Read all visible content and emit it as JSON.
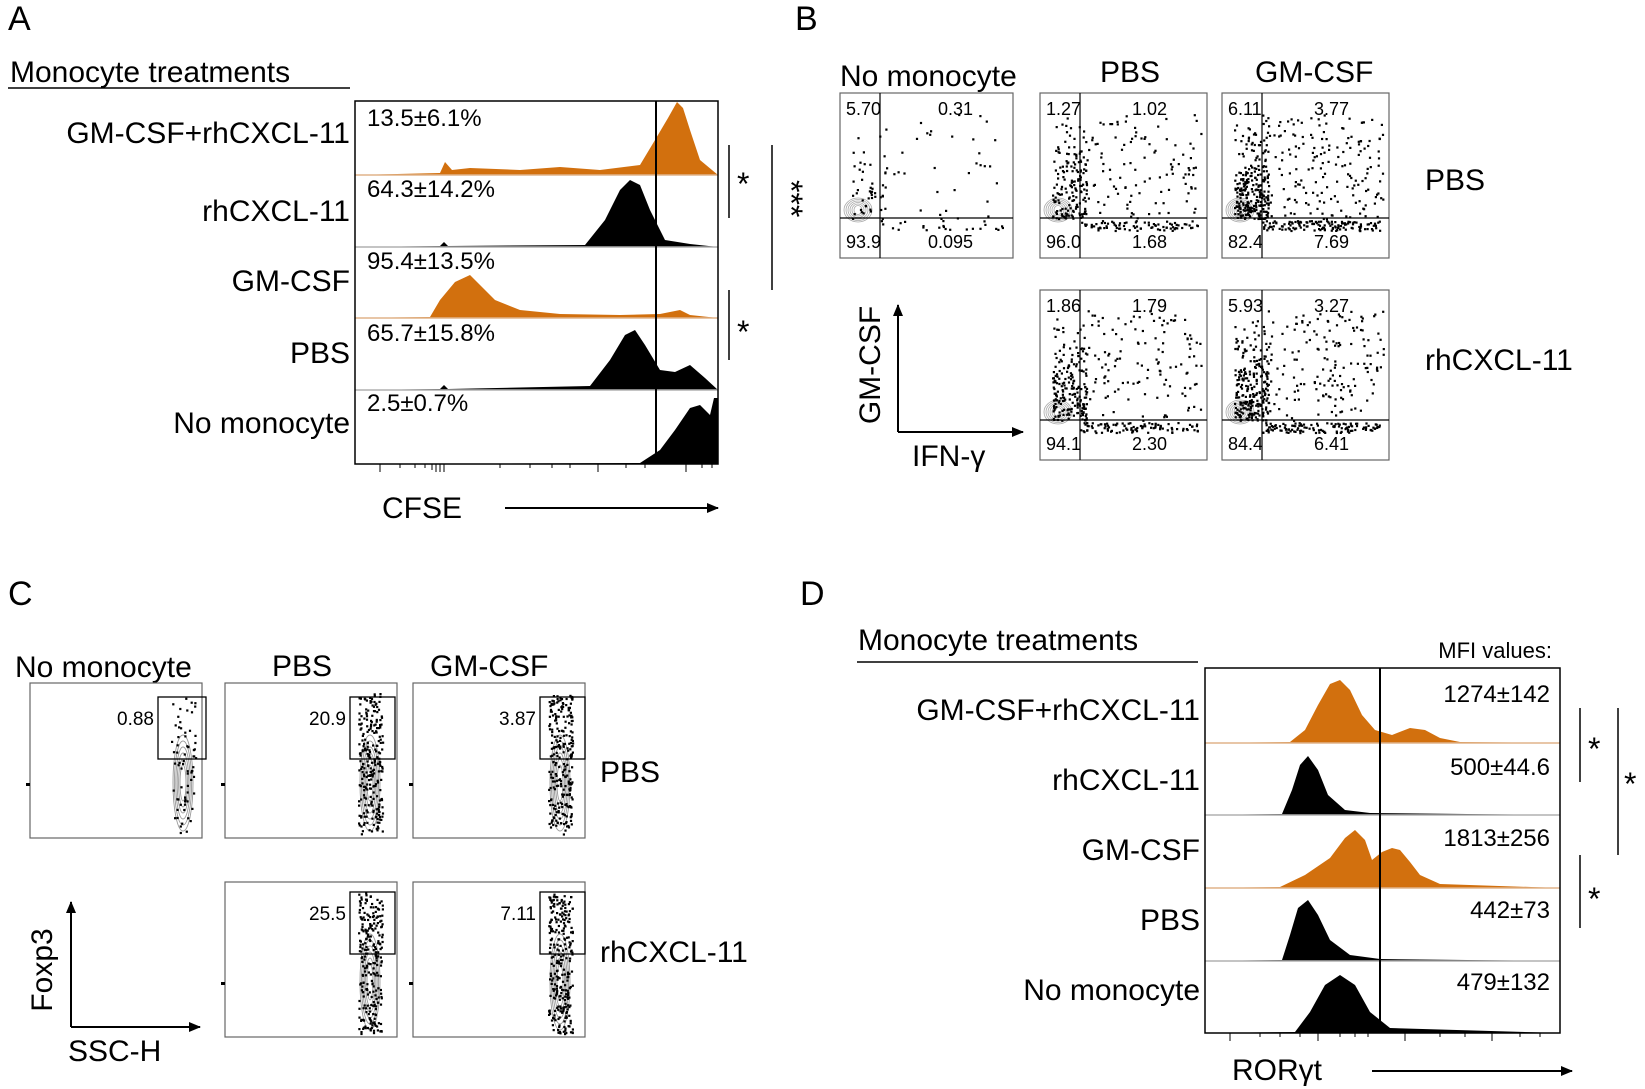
{
  "colors": {
    "orange": "#d2700e",
    "black": "#000000",
    "ink": "#000000",
    "dots": "#000000",
    "contour": "#9a9a9a"
  },
  "panelA": {
    "letter": "A",
    "heading": "Monocyte treatments",
    "rows": [
      {
        "label": "GM-CSF+rhCXCL-11",
        "value": "13.5±6.1%",
        "color": "orange"
      },
      {
        "label": "rhCXCL-11",
        "value": "64.3±14.2%",
        "color": "black"
      },
      {
        "label": "GM-CSF",
        "value": "95.4±13.5%",
        "color": "orange"
      },
      {
        "label": "PBS",
        "value": "65.7±15.8%",
        "color": "black"
      },
      {
        "label": "No monocyte",
        "value": "2.5±0.7%",
        "color": "black"
      }
    ],
    "xlabel": "CFSE",
    "sig": [
      "*",
      "***",
      "*"
    ]
  },
  "panelB": {
    "letter": "B",
    "col_titles": [
      "No monocyte",
      "PBS",
      "GM-CSF"
    ],
    "row_labels": [
      "PBS",
      "rhCXCL-11"
    ],
    "ylabel": "GM-CSF",
    "xlabel": "IFN-γ",
    "plots": [
      {
        "ul": "5.70",
        "ur": "0.31",
        "ll": "93.9",
        "lr": "0.095"
      },
      {
        "ul": "1.27",
        "ur": "1.02",
        "ll": "96.0",
        "lr": "1.68"
      },
      {
        "ul": "6.11",
        "ur": "3.77",
        "ll": "82.4",
        "lr": "7.69"
      },
      {
        "ul": "1.86",
        "ur": "1.79",
        "ll": "94.1",
        "lr": "2.30"
      },
      {
        "ul": "5.93",
        "ur": "3.27",
        "ll": "84.4",
        "lr": "6.41"
      }
    ]
  },
  "panelC": {
    "letter": "C",
    "col_titles": [
      "No monocyte",
      "PBS",
      "GM-CSF"
    ],
    "row_labels": [
      "PBS",
      "rhCXCL-11"
    ],
    "ylabel": "Foxp3",
    "xlabel": "SSC-H",
    "gates": [
      "0.88",
      "20.9",
      "3.87",
      "25.5",
      "7.11"
    ]
  },
  "panelD": {
    "letter": "D",
    "heading": "Monocyte treatments",
    "mfi_header": "MFI values:",
    "rows": [
      {
        "label": "GM-CSF+rhCXCL-11",
        "value": "1274±142",
        "color": "orange"
      },
      {
        "label": "rhCXCL-11",
        "value": "500±44.6",
        "color": "black"
      },
      {
        "label": "GM-CSF",
        "value": "1813±256",
        "color": "orange"
      },
      {
        "label": "PBS",
        "value": "442±73",
        "color": "black"
      },
      {
        "label": "No monocyte",
        "value": "479±132",
        "color": "black"
      }
    ],
    "xlabel": "RORγt",
    "sig": [
      "*",
      "*",
      "*"
    ]
  }
}
